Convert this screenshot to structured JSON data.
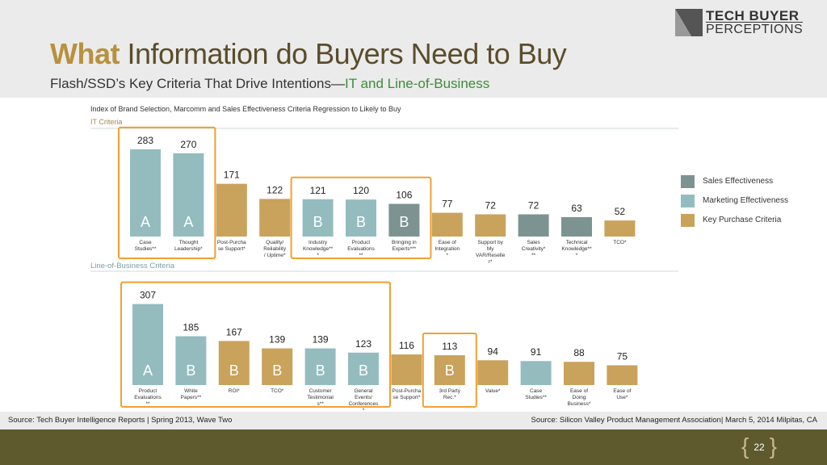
{
  "header": {
    "title_emphasis": "What",
    "title_rest": " Information do Buyers Need to Buy",
    "subtitle_main": "Flash/SSD’s Key Criteria That Drive Intentions—",
    "subtitle_accent": "IT and Line-of-Business"
  },
  "logo": {
    "line1": "TECH BUYER",
    "line2": "PERCEPTIONS"
  },
  "chart_heading": "Index of Brand Selection, Marcomm and Sales Effectiveness Criteria Regression to Likely to Buy",
  "footer": {
    "left": "Source: Tech Buyer Intelligence Reports  |  Spring 2013, Wave Two",
    "right": "Source: Silicon Valley Product Management Association| March 5, 2014  Milpitas, CA",
    "page": "22"
  },
  "colors": {
    "sales": "#7d9391",
    "marketing": "#94bcbf",
    "purchase": "#c9a25c",
    "highlight": "#f0a030",
    "footer_bar": "#5e5a2e"
  },
  "chart_data": [
    {
      "type": "bar",
      "title": "IT Criteria",
      "categories": [
        "Case Studies**",
        "Thought Leadership*",
        "Post-Purchase Support*",
        "Quality/ Reliability/ Uptime*",
        "Industry Knowledge***",
        "Product Evaluations**",
        "Bringing in Experts***",
        "Ease of Integration*",
        "Support by My VAR/Reseller*",
        "Sales Creativity***",
        "Technical Knowledge***",
        "TCO*"
      ],
      "values": [
        283,
        270,
        171,
        122,
        121,
        120,
        106,
        77,
        72,
        72,
        63,
        52
      ],
      "series_type": [
        "Marketing Effectiveness",
        "Marketing Effectiveness",
        "Key Purchase Criteria",
        "Key Purchase Criteria",
        "Marketing Effectiveness",
        "Marketing Effectiveness",
        "Sales Effectiveness",
        "Key Purchase Criteria",
        "Key Purchase Criteria",
        "Sales Effectiveness",
        "Sales Effectiveness",
        "Key Purchase Criteria"
      ],
      "grades": [
        "A",
        "A",
        "",
        "",
        "B",
        "B",
        "B",
        "",
        "",
        "",
        "",
        ""
      ],
      "highlight_groups": [
        [
          0,
          1
        ],
        [
          4,
          6
        ]
      ]
    },
    {
      "type": "bar",
      "title": "Line-of-Business Criteria",
      "categories": [
        "Product Evaluations**",
        "White Papers**",
        "ROI*",
        "TCO*",
        "Customer Testimonials**",
        "General Events/ Conferences*",
        "Post-Purchase Support*",
        "3rd Party Rec.*",
        "Value*",
        "Case Studies**",
        "Ease of Doing Business*",
        "Ease of Use*"
      ],
      "values": [
        307,
        185,
        167,
        139,
        139,
        123,
        116,
        113,
        94,
        91,
        88,
        75
      ],
      "series_type": [
        "Marketing Effectiveness",
        "Marketing Effectiveness",
        "Key Purchase Criteria",
        "Key Purchase Criteria",
        "Marketing Effectiveness",
        "Marketing Effectiveness",
        "Key Purchase Criteria",
        "Key Purchase Criteria",
        "Key Purchase Criteria",
        "Marketing Effectiveness",
        "Key Purchase Criteria",
        "Key Purchase Criteria"
      ],
      "grades": [
        "A",
        "B",
        "B",
        "B",
        "B",
        "B",
        "",
        "B",
        "",
        "",
        "",
        ""
      ],
      "highlight_groups": [
        [
          0,
          5
        ],
        [
          7,
          7
        ]
      ]
    }
  ],
  "legend": [
    {
      "label": "Sales Effectiveness",
      "color": "#7d9391"
    },
    {
      "label": "Marketing Effectiveness",
      "color": "#94bcbf"
    },
    {
      "label": "Key Purchase Criteria",
      "color": "#c9a25c"
    }
  ]
}
